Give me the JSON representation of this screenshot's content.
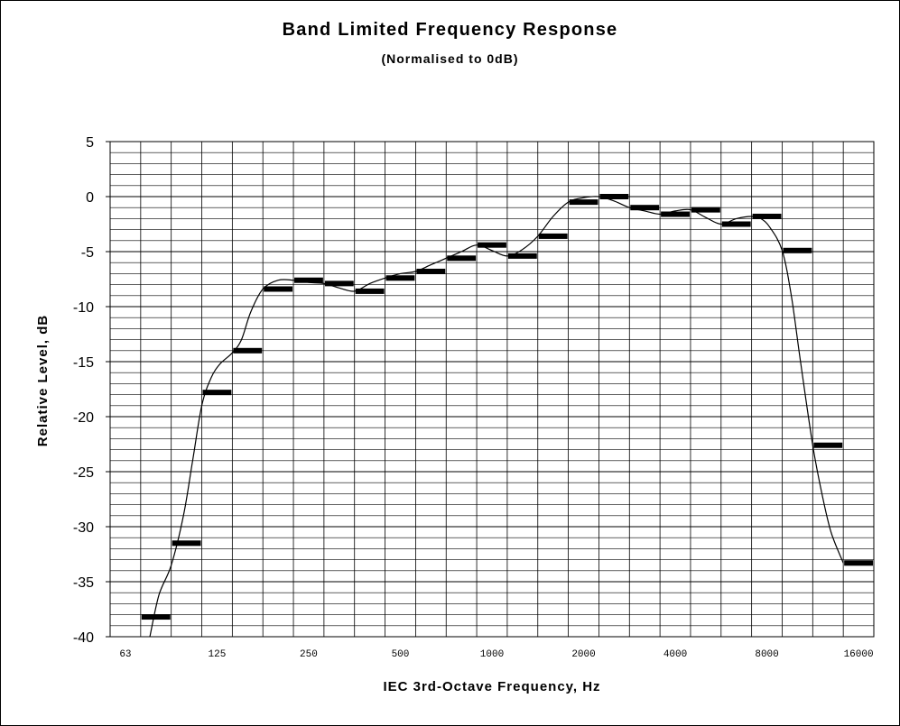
{
  "chart_data": {
    "type": "line",
    "title": "Band Limited Frequency Response",
    "subtitle": "(Normalised to 0dB)",
    "xlabel": "IEC 3rd-Octave Frequency, Hz",
    "ylabel": "Relative Level, dB",
    "ylim": [
      -40,
      5
    ],
    "yticks": [
      "5",
      "0",
      "-5",
      "-10",
      "-15",
      "-20",
      "-25",
      "-30",
      "-35",
      "-40"
    ],
    "x_tick_labels": [
      "63",
      "125",
      "250",
      "500",
      "1000",
      "2000",
      "4000",
      "8000",
      "16000"
    ],
    "grid": true,
    "bands": [
      {
        "index": 1,
        "value": -38.2
      },
      {
        "index": 2,
        "value": -31.5
      },
      {
        "index": 3,
        "value": -17.8
      },
      {
        "index": 4,
        "value": -14.0
      },
      {
        "index": 5,
        "value": -8.4
      },
      {
        "index": 6,
        "value": -7.6
      },
      {
        "index": 7,
        "value": -7.9
      },
      {
        "index": 8,
        "value": -8.6
      },
      {
        "index": 9,
        "value": -7.4
      },
      {
        "index": 10,
        "value": -6.8
      },
      {
        "index": 11,
        "value": -5.6
      },
      {
        "index": 12,
        "value": -4.4
      },
      {
        "index": 13,
        "value": -5.4
      },
      {
        "index": 14,
        "value": -3.6
      },
      {
        "index": 15,
        "value": -0.5
      },
      {
        "index": 16,
        "value": 0.0
      },
      {
        "index": 17,
        "value": -1.0
      },
      {
        "index": 18,
        "value": -1.6
      },
      {
        "index": 19,
        "value": -1.2
      },
      {
        "index": 20,
        "value": -2.5
      },
      {
        "index": 21,
        "value": -1.8
      },
      {
        "index": 22,
        "value": -4.9
      },
      {
        "index": 23,
        "value": -22.6
      },
      {
        "index": 24,
        "value": -33.3
      }
    ],
    "curve": [
      [
        1.3,
        -40.0
      ],
      [
        1.6,
        -36.2
      ],
      [
        2.0,
        -33.5
      ],
      [
        2.4,
        -29.0
      ],
      [
        2.7,
        -24.0
      ],
      [
        3.0,
        -19.0
      ],
      [
        3.3,
        -16.5
      ],
      [
        3.6,
        -15.2
      ],
      [
        4.0,
        -14.2
      ],
      [
        4.3,
        -13.0
      ],
      [
        4.6,
        -10.5
      ],
      [
        5.0,
        -8.4
      ],
      [
        5.5,
        -7.6
      ],
      [
        6.0,
        -7.6
      ],
      [
        6.5,
        -7.8
      ],
      [
        7.0,
        -7.9
      ],
      [
        7.5,
        -8.3
      ],
      [
        8.0,
        -8.6
      ],
      [
        8.5,
        -7.9
      ],
      [
        9.0,
        -7.4
      ],
      [
        9.5,
        -7.0
      ],
      [
        10.0,
        -6.8
      ],
      [
        10.5,
        -6.2
      ],
      [
        11.0,
        -5.6
      ],
      [
        11.5,
        -5.0
      ],
      [
        12.0,
        -4.4
      ],
      [
        12.5,
        -4.9
      ],
      [
        13.0,
        -5.4
      ],
      [
        13.5,
        -4.8
      ],
      [
        14.0,
        -3.6
      ],
      [
        14.5,
        -1.8
      ],
      [
        15.0,
        -0.5
      ],
      [
        15.5,
        -0.1
      ],
      [
        16.0,
        0.0
      ],
      [
        16.5,
        -0.4
      ],
      [
        17.0,
        -1.0
      ],
      [
        17.5,
        -1.3
      ],
      [
        18.0,
        -1.6
      ],
      [
        18.5,
        -1.3
      ],
      [
        19.0,
        -1.2
      ],
      [
        19.5,
        -1.9
      ],
      [
        20.0,
        -2.5
      ],
      [
        20.5,
        -2.0
      ],
      [
        21.0,
        -1.8
      ],
      [
        21.3,
        -2.0
      ],
      [
        21.6,
        -2.8
      ],
      [
        22.0,
        -4.9
      ],
      [
        22.3,
        -9.0
      ],
      [
        22.6,
        -15.0
      ],
      [
        23.0,
        -22.6
      ],
      [
        23.3,
        -27.0
      ],
      [
        23.6,
        -30.5
      ],
      [
        24.0,
        -33.3
      ]
    ]
  }
}
